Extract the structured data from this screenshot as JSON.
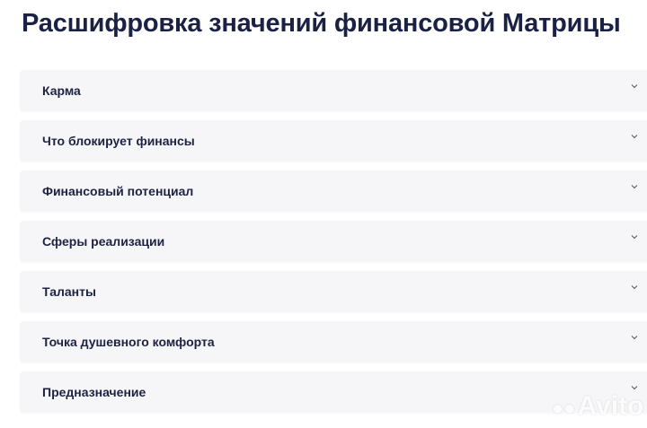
{
  "header": {
    "title": "Расшифровка значений финансовой Матрицы"
  },
  "accordion": {
    "items": [
      {
        "label": "Карма"
      },
      {
        "label": "Что блокирует финансы"
      },
      {
        "label": "Финансовый потенциал"
      },
      {
        "label": "Сферы реализации"
      },
      {
        "label": "Таланты"
      },
      {
        "label": "Точка душевного комфорта"
      },
      {
        "label": "Предназначение"
      }
    ]
  },
  "watermark": {
    "text": "Avito"
  }
}
